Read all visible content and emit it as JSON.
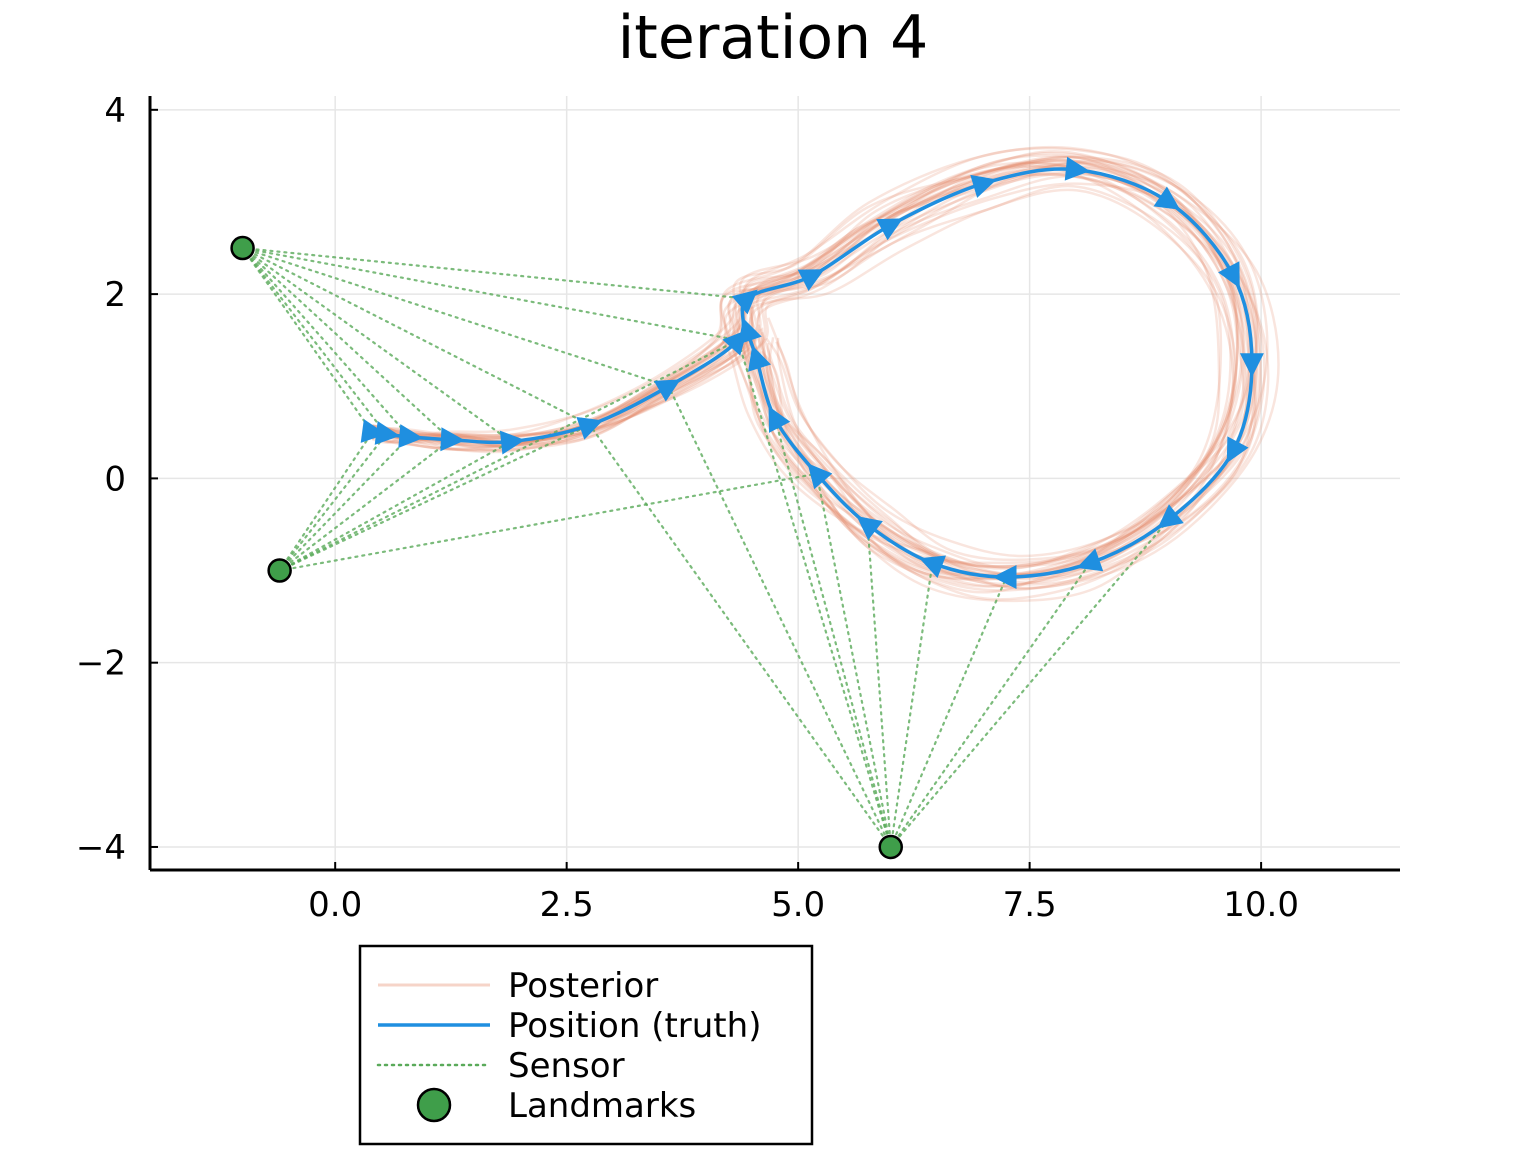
{
  "chart_data": {
    "type": "line",
    "title": "iteration 4",
    "xlabel": "",
    "ylabel": "",
    "xlim": [
      -2.0,
      11.5
    ],
    "ylim": [
      -4.25,
      4.15
    ],
    "x_ticks": [
      0.0,
      2.5,
      5.0,
      7.5,
      10.0
    ],
    "x_tick_labels": [
      "0.0",
      "2.5",
      "5.0",
      "7.5",
      "10.0"
    ],
    "y_ticks": [
      4,
      2,
      0,
      -2,
      -4
    ],
    "y_tick_labels": [
      "4",
      "2",
      "0",
      "−2",
      "−4"
    ],
    "grid": true,
    "legend_position": "below plot",
    "colors": {
      "posterior": "#e5896a",
      "truth": "#1f8fe0",
      "sensor": "#5aaa5a",
      "landmark": "#3f9e4a"
    },
    "series": [
      {
        "name": "Position (truth)",
        "x": [
          0.4,
          0.55,
          0.8,
          1.25,
          1.9,
          2.75,
          3.6,
          4.35,
          4.45,
          5.15,
          6.0,
          7.0,
          8.0,
          9.0,
          9.7,
          9.9,
          9.7,
          9.0,
          8.15,
          7.25,
          6.45,
          5.75,
          5.2,
          4.75,
          4.55,
          4.45
        ],
        "y": [
          0.5,
          0.48,
          0.45,
          0.42,
          0.4,
          0.58,
          1.0,
          1.5,
          1.95,
          2.2,
          2.75,
          3.2,
          3.35,
          3.0,
          2.2,
          1.25,
          0.3,
          -0.45,
          -0.92,
          -1.07,
          -0.92,
          -0.5,
          0.05,
          0.65,
          1.3,
          1.6
        ]
      },
      {
        "name": "Landmarks",
        "x": [
          -1.0,
          -0.6,
          6.0
        ],
        "y": [
          2.5,
          -1.0,
          -4.0
        ]
      }
    ],
    "legend": [
      {
        "label": "Posterior",
        "style": "line-faint",
        "color": "#f0b8a4"
      },
      {
        "label": "Position (truth)",
        "style": "line",
        "color": "#1f8fe0"
      },
      {
        "label": "Sensor",
        "style": "dotted",
        "color": "#5aaa5a"
      },
      {
        "label": "Landmarks",
        "style": "marker",
        "color": "#3f9e4a"
      }
    ],
    "posterior_sample_count": 30,
    "sensor_links": [
      {
        "landmark": 0,
        "points": [
          0,
          1,
          2,
          3,
          4,
          5,
          6,
          7,
          8
        ]
      },
      {
        "landmark": 1,
        "points": [
          0,
          1,
          2,
          3,
          4,
          5,
          7,
          22
        ]
      },
      {
        "landmark": 2,
        "points": [
          5,
          6,
          7,
          17,
          18,
          19,
          20,
          21,
          22,
          23
        ]
      }
    ]
  }
}
